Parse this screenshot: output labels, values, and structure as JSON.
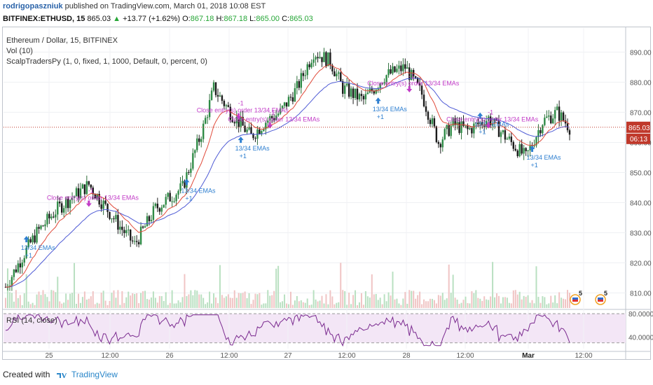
{
  "header": {
    "author": "rodrigopaszniuk",
    "published": "published on TradingView.com, March 01, 2018 10:08 EST"
  },
  "quote": {
    "symbol": "BITFINEX:ETHUSD, 15",
    "last": "865.03",
    "arrow": "▲",
    "change": "+13.77 (+1.62%)",
    "o_label": "O:",
    "o": "867.18",
    "h_label": "H:",
    "h": "867.18",
    "l_label": "L:",
    "l": "865.00",
    "c_label": "C:",
    "c": "865.03"
  },
  "legend": {
    "title": "Ethereum / Dollar, 15, BITFINEX",
    "vol": "Vol (10)",
    "strategy": "ScalpTradersPy (1, 0, fixed, 1, 1000, Default, 0, percent, 0)",
    "rsi": "RSI (14, close)"
  },
  "footer": {
    "created_with": "Created with",
    "brand": "TradingView"
  },
  "chart_data": {
    "type": "candlestick",
    "price_axis": {
      "ticks": [
        810,
        820,
        830,
        840,
        850,
        860,
        870,
        880,
        890
      ],
      "range": [
        805,
        898
      ]
    },
    "rsi_axis": {
      "ticks": [
        "80.0000",
        "40.0000"
      ],
      "range": [
        20,
        85
      ]
    },
    "x_ticks": [
      "25",
      "12:00",
      "26",
      "12:00",
      "27",
      "12:00",
      "28",
      "12:00",
      "Mar",
      "12:00"
    ],
    "last_price_label": "865.03",
    "countdown_label": "06:13",
    "signals": [
      {
        "label": "13/34 EMAs",
        "qty": "+1",
        "side": "buy",
        "i": 10,
        "price": 828
      },
      {
        "label": "Close entry(s) order 13/34 EMAs",
        "qty": "-1",
        "side": "sell",
        "i": 40,
        "price": 840
      },
      {
        "label": "13/34 EMAs",
        "qty": "+1",
        "side": "buy",
        "i": 87,
        "price": 847
      },
      {
        "label": "13/34 EMAs",
        "qty": "+1",
        "side": "buy",
        "i": 113,
        "price": 861
      },
      {
        "label": "Close entry(s) order 13/34 EMAs",
        "qty": "-1",
        "side": "sell",
        "i": 112,
        "price": 869
      },
      {
        "label": "Close entry(s) order 13/34 EMAs",
        "qty": "-1",
        "side": "sell",
        "i": 127,
        "price": 866
      },
      {
        "label": "13/34 EMAs",
        "qty": "+1",
        "side": "buy",
        "i": 179,
        "price": 874
      },
      {
        "label": "Close entry(s) order 13/34 EMAs",
        "qty": "-1",
        "side": "sell",
        "i": 194,
        "price": 878
      },
      {
        "label": "13/34 EMAs",
        "qty": "+1",
        "side": "buy",
        "i": 228,
        "price": 869
      },
      {
        "label": "Close entry(s) order 13/34 EMAs",
        "qty": "-1",
        "side": "sell",
        "i": 232,
        "price": 866
      },
      {
        "label": "13/34 EMAs",
        "qty": "+1",
        "side": "buy",
        "i": 253,
        "price": 858
      }
    ],
    "event_badge": "5"
  }
}
